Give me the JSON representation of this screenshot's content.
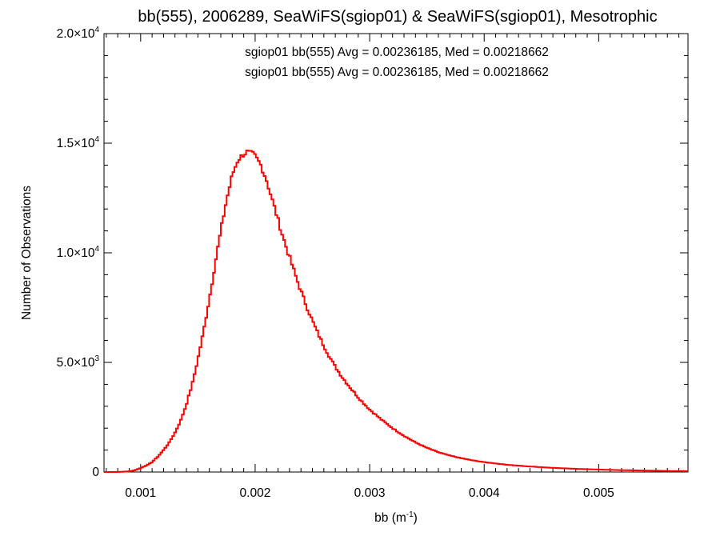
{
  "chart_data": {
    "type": "line",
    "title": "bb(555), 2006289, SeaWiFS(sgiop01) & SeaWiFS(sgiop01), Mesotrophic",
    "xlabel": {
      "base": "bb (m",
      "sup": "-1",
      "close": ")"
    },
    "ylabel": "Number of Observations",
    "xlim": [
      0.00068,
      0.00578
    ],
    "ylim": [
      0,
      20000
    ],
    "x_ticks": [
      {
        "value": 0.001,
        "label": "0.001"
      },
      {
        "value": 0.002,
        "label": "0.002"
      },
      {
        "value": 0.003,
        "label": "0.003"
      },
      {
        "value": 0.004,
        "label": "0.004"
      },
      {
        "value": 0.005,
        "label": "0.005"
      }
    ],
    "y_ticks": [
      {
        "value": 0,
        "mantissa": "0",
        "exp": ""
      },
      {
        "value": 5000,
        "mantissa": "5.0×10",
        "exp": "3"
      },
      {
        "value": 10000,
        "mantissa": "1.0×10",
        "exp": "4"
      },
      {
        "value": 15000,
        "mantissa": "1.5×10",
        "exp": "4"
      },
      {
        "value": 20000,
        "mantissa": "2.0×10",
        "exp": "4"
      }
    ],
    "annotations": [
      {
        "text": "sgiop01 bb(555) Avg = 0.00236185, Med = 0.00218662",
        "color": "#000000"
      },
      {
        "text": "sgiop01 bb(555) Avg = 0.00236185, Med = 0.00218662",
        "color": "#ff0000"
      }
    ],
    "series": [
      {
        "color": "#ff0000",
        "style": "step",
        "x": [
          0.00068,
          0.0008,
          0.0009,
          0.00095,
          0.001,
          0.00105,
          0.0011,
          0.00115,
          0.0012,
          0.00125,
          0.0013,
          0.00135,
          0.0014,
          0.00145,
          0.0015,
          0.00155,
          0.0016,
          0.00165,
          0.0017,
          0.00175,
          0.0018,
          0.00185,
          0.0019,
          0.00193,
          0.00195,
          0.00198,
          0.002,
          0.00205,
          0.0021,
          0.00215,
          0.0022,
          0.00225,
          0.0023,
          0.00235,
          0.0024,
          0.00245,
          0.0025,
          0.00255,
          0.0026,
          0.00265,
          0.0027,
          0.00275,
          0.0028,
          0.0029,
          0.003,
          0.0031,
          0.0032,
          0.0033,
          0.0034,
          0.0035,
          0.0036,
          0.0037,
          0.0038,
          0.0039,
          0.004,
          0.0042,
          0.0044,
          0.0046,
          0.0048,
          0.005,
          0.0052,
          0.0054,
          0.0056,
          0.00578
        ],
        "y": [
          0,
          0,
          30,
          80,
          180,
          300,
          450,
          700,
          1000,
          1350,
          1800,
          2350,
          3100,
          4000,
          5150,
          6450,
          7900,
          9500,
          11000,
          12400,
          13550,
          14250,
          14500,
          14600,
          14550,
          14500,
          14400,
          14000,
          13300,
          12400,
          11500,
          10600,
          9800,
          9000,
          8250,
          7550,
          6900,
          6300,
          5750,
          5250,
          4800,
          4400,
          4050,
          3400,
          2850,
          2400,
          2000,
          1650,
          1350,
          1100,
          900,
          750,
          630,
          530,
          450,
          330,
          250,
          190,
          145,
          110,
          85,
          65,
          50,
          40
        ]
      }
    ]
  }
}
